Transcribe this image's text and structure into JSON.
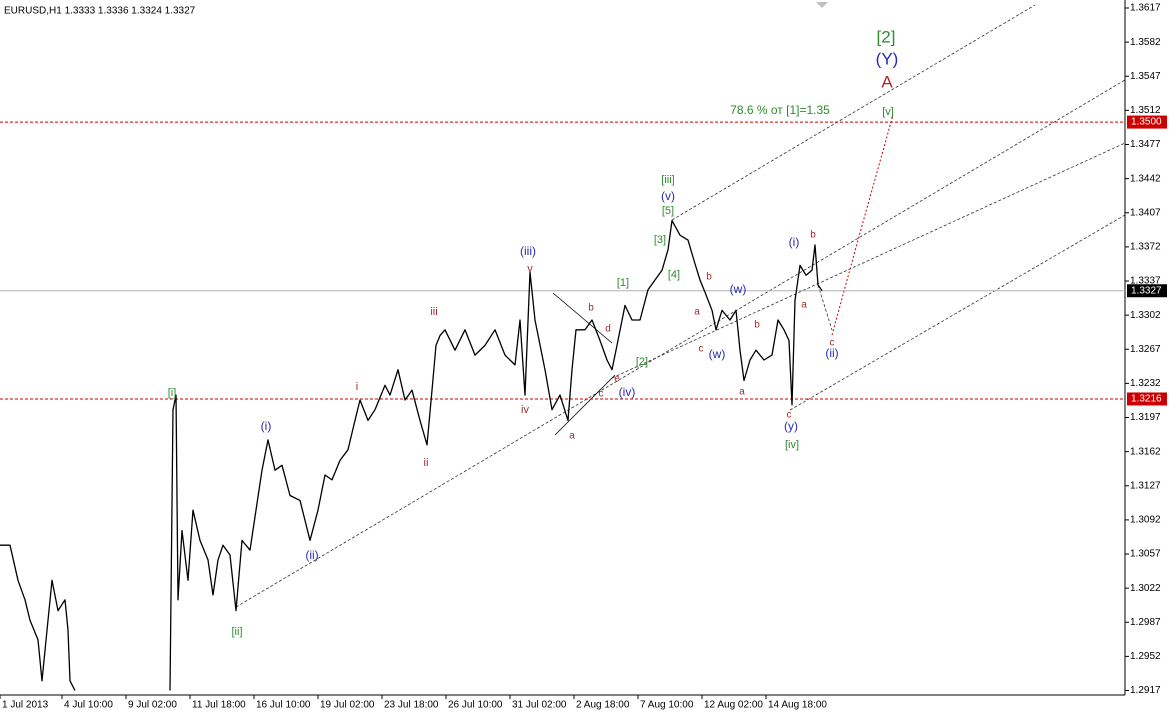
{
  "chart_data": {
    "type": "line",
    "title": "EURUSD,H1  1.3333 1.3336 1.3324 1.3327",
    "x": [
      0,
      10,
      18,
      25,
      30,
      38,
      42,
      48,
      52,
      58,
      65,
      68,
      70,
      75,
      120,
      170,
      173,
      176,
      178,
      182,
      188,
      193,
      200,
      208,
      213,
      218,
      223,
      230,
      236,
      242,
      250,
      256,
      262,
      268,
      275,
      282,
      290,
      300,
      310,
      318,
      325,
      332,
      340,
      348,
      355,
      360,
      368,
      375,
      385,
      390,
      398,
      405,
      412,
      420,
      427,
      432,
      436,
      440,
      445,
      455,
      465,
      475,
      485,
      495,
      505,
      515,
      520,
      525,
      530,
      535,
      545,
      552,
      560,
      568,
      572,
      576,
      585,
      592,
      600,
      607,
      612,
      617,
      625,
      632,
      640,
      648,
      655,
      662,
      668,
      672,
      680,
      688,
      694,
      700,
      706,
      712,
      716,
      722,
      730,
      736,
      740,
      744,
      750,
      756,
      764,
      772,
      778,
      784,
      789,
      792,
      795,
      800,
      806,
      812,
      815,
      818,
      822
    ],
    "series": [
      {
        "name": "EURUSD",
        "color": "#000000",
        "values": [
          1.3066,
          1.3066,
          1.303,
          1.301,
          1.2989,
          1.2969,
          1.2927,
          1.2989,
          1.303,
          1.2999,
          1.301,
          1.2979,
          1.2927,
          1.2917,
          null,
          1.2917,
          1.3205,
          1.322,
          1.301,
          1.3081,
          1.303,
          1.3102,
          1.3071,
          1.3051,
          1.3015,
          1.3051,
          1.3066,
          1.3056,
          1.2999,
          1.3071,
          1.3061,
          1.3102,
          1.3143,
          1.3174,
          1.3143,
          1.3148,
          1.3117,
          1.3112,
          1.3071,
          1.3102,
          1.3138,
          1.3133,
          1.3153,
          1.3164,
          1.3194,
          1.3215,
          1.3194,
          1.3205,
          1.323,
          1.322,
          1.3246,
          1.3215,
          1.3225,
          1.3194,
          1.3169,
          1.3225,
          1.3271,
          1.3281,
          1.3287,
          1.3266,
          1.3287,
          1.3261,
          1.3271,
          1.3287,
          1.3261,
          1.3251,
          1.3297,
          1.322,
          1.3346,
          1.3297,
          1.3246,
          1.3205,
          1.322,
          1.3194,
          1.3246,
          1.3287,
          1.3287,
          1.3297,
          1.3276,
          1.3256,
          1.3246,
          1.3271,
          1.3312,
          1.3297,
          1.3297,
          1.3328,
          1.3338,
          1.3348,
          1.3369,
          1.3399,
          1.3384,
          1.3379,
          1.3358,
          1.3338,
          1.3323,
          1.3307,
          1.3287,
          1.3307,
          1.3297,
          1.3307,
          1.3266,
          1.3235,
          1.3256,
          1.3266,
          1.3256,
          1.3261,
          1.3297,
          1.3287,
          1.3276,
          1.321,
          1.3317,
          1.3353,
          1.3343,
          1.3348,
          1.3374,
          1.3333,
          1.3327
        ]
      }
    ],
    "xlim": [
      0,
      1125
    ],
    "xticks": [
      {
        "value": 0,
        "label": "1 Jul 2013"
      },
      {
        "value": 62,
        "label": "4 Jul 10:00"
      },
      {
        "value": 126,
        "label": "9 Jul 02:00"
      },
      {
        "value": 190,
        "label": "11 Jul 18:00"
      },
      {
        "value": 254,
        "label": "16 Jul 10:00"
      },
      {
        "value": 318,
        "label": "19 Jul 02:00"
      },
      {
        "value": 382,
        "label": "23 Jul 18:00"
      },
      {
        "value": 446,
        "label": "26 Jul 10:00"
      },
      {
        "value": 510,
        "label": "31 Jul 02:00"
      },
      {
        "value": 574,
        "label": "2 Aug 18:00"
      },
      {
        "value": 638,
        "label": "7 Aug 10:00"
      },
      {
        "value": 702,
        "label": "12 Aug 02:00"
      },
      {
        "value": 766,
        "label": "14 Aug 18:00"
      }
    ],
    "ylim": [
      1.29124,
      1.36252
    ],
    "yticks": [
      1.3617,
      1.3582,
      1.3547,
      1.3512,
      1.3477,
      1.3442,
      1.3407,
      1.3372,
      1.3337,
      1.3302,
      1.3267,
      1.3232,
      1.3197,
      1.3162,
      1.3127,
      1.3092,
      1.3057,
      1.3022,
      1.2987,
      1.2952,
      1.2917
    ],
    "levels": [
      {
        "value": 1.35,
        "label": "1.3500",
        "color": "#cc0000",
        "style": "dashed"
      },
      {
        "value": 1.3327,
        "label": "1.3327",
        "color": "#000000",
        "style": "solid"
      },
      {
        "value": 1.3216,
        "label": "1.3216",
        "color": "#cc0000",
        "style": "dashed"
      }
    ],
    "annotations": [
      {
        "text": "[2]",
        "color": "#2e8b2e"
      },
      {
        "text": "(Y)",
        "color": "#2a2ab0"
      },
      {
        "text": "A",
        "color": "#a52a2a"
      },
      {
        "text": "78.6 % от [1]=1.35",
        "color": "#2e8b2e"
      },
      {
        "text": "[v]",
        "color": "#2e8b2e"
      },
      {
        "text": "[i]",
        "color": "#2e8b2e"
      },
      {
        "text": "[ii]",
        "color": "#2e8b2e"
      },
      {
        "text": "(i)",
        "color": "#2a2ab0"
      },
      {
        "text": "(ii)",
        "color": "#2a2ab0"
      },
      {
        "text": "i",
        "color": "#a52a2a"
      },
      {
        "text": "ii",
        "color": "#a52a2a"
      },
      {
        "text": "iii",
        "color": "#a52a2a"
      },
      {
        "text": "iv",
        "color": "#a52a2a"
      },
      {
        "text": "(iii)",
        "color": "#2a2ab0"
      },
      {
        "text": "v",
        "color": "#a52a2a"
      },
      {
        "text": "a",
        "color": "#a52a2a"
      },
      {
        "text": "b",
        "color": "#a52a2a"
      },
      {
        "text": "d",
        "color": "#a52a2a"
      },
      {
        "text": "c",
        "color": "#a52a2a"
      },
      {
        "text": "e",
        "color": "#a52a2a"
      },
      {
        "text": "(iv)",
        "color": "#2a2ab0"
      },
      {
        "text": "[1]",
        "color": "#2e8b2e"
      },
      {
        "text": "[2]",
        "color": "#2e8b2e"
      },
      {
        "text": "[3]",
        "color": "#2e8b2e"
      },
      {
        "text": "[4]",
        "color": "#2e8b2e"
      },
      {
        "text": "[5]",
        "color": "#2e8b2e"
      },
      {
        "text": "(v)",
        "color": "#2a2ab0"
      },
      {
        "text": "[iii]",
        "color": "#2e8b2e"
      },
      {
        "text": "b",
        "color": "#a52a2a"
      },
      {
        "text": "a",
        "color": "#a52a2a"
      },
      {
        "text": "c",
        "color": "#a52a2a"
      },
      {
        "text": "(w)",
        "color": "#2a2ab0"
      },
      {
        "text": "(w)",
        "color": "#2a2ab0"
      },
      {
        "text": "b",
        "color": "#a52a2a"
      },
      {
        "text": "a",
        "color": "#a52a2a"
      },
      {
        "text": "(i)",
        "color": "#2a2ab0"
      },
      {
        "text": "b",
        "color": "#a52a2a"
      },
      {
        "text": "a",
        "color": "#a52a2a"
      },
      {
        "text": "c",
        "color": "#a52a2a"
      },
      {
        "text": "(y)",
        "color": "#2a2ab0"
      },
      {
        "text": "[iv]",
        "color": "#2e8b2e"
      },
      {
        "text": "c",
        "color": "#a52a2a"
      },
      {
        "text": "(ii)",
        "color": "#2a2ab0"
      }
    ]
  }
}
